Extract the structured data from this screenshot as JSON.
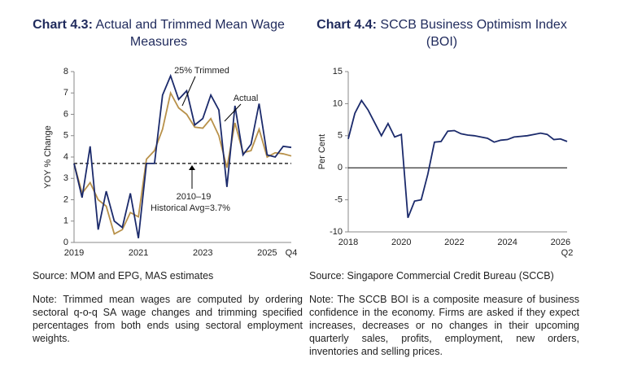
{
  "chart_data": [
    {
      "type": "line",
      "label": "Chart 4.3:",
      "title": "Actual and Trimmed Mean Wage Measures",
      "y_label": "YOY % Change",
      "categories": [
        "2019",
        null,
        null,
        null,
        null,
        null,
        null,
        null,
        "2021",
        null,
        null,
        null,
        null,
        null,
        null,
        null,
        "2023",
        null,
        null,
        null,
        null,
        null,
        null,
        null,
        "2025",
        null,
        null,
        "Q4"
      ],
      "series": [
        {
          "name": "25% Trimmed",
          "color": "#b8914a",
          "values": [
            3.7,
            2.3,
            2.8,
            2.0,
            1.7,
            0.4,
            0.6,
            1.4,
            1.2,
            3.9,
            4.3,
            5.3,
            7.0,
            6.3,
            6.0,
            5.4,
            5.35,
            5.8,
            5.0,
            3.5,
            5.6,
            4.2,
            4.3,
            5.3,
            4.0,
            4.2,
            4.15,
            4.05
          ]
        },
        {
          "name": "Actual",
          "color": "#1b2a6b",
          "values": [
            3.7,
            2.1,
            4.5,
            0.6,
            2.4,
            1.0,
            0.7,
            2.3,
            0.2,
            3.7,
            3.7,
            6.9,
            7.8,
            6.7,
            7.1,
            5.5,
            5.8,
            6.9,
            6.2,
            2.6,
            6.4,
            4.1,
            4.6,
            6.5,
            4.1,
            4.0,
            4.5,
            4.45
          ]
        }
      ],
      "reference_line": 3.7,
      "annotations": [
        "2010–19",
        "Historical Avg=3.7%"
      ],
      "ylim": [
        0,
        8
      ],
      "yticks": [
        0,
        1,
        2,
        3,
        4,
        5,
        6,
        7,
        8
      ],
      "source": "Source: MOM and EPG, MAS estimates",
      "note": "Note: Trimmed mean wages are computed by ordering sectoral q-o-q SA wage changes and trimming specified percentages from both ends using sectoral employment weights."
    },
    {
      "type": "line",
      "label": "Chart 4.4:",
      "title": "SCCB Business Optimism Index (BOI)",
      "y_label": "Per Cent",
      "categories": [
        "2018",
        null,
        null,
        null,
        null,
        null,
        null,
        null,
        "2020",
        null,
        null,
        null,
        null,
        null,
        null,
        null,
        "2022",
        null,
        null,
        null,
        null,
        null,
        null,
        null,
        "2024",
        null,
        null,
        null,
        null,
        null,
        null,
        null,
        "2026",
        "Q2"
      ],
      "series": [
        {
          "name": "SCCB BOI",
          "color": "#1b2a6b",
          "values": [
            4.5,
            8.5,
            10.5,
            9.0,
            7.0,
            5.0,
            6.9,
            4.8,
            5.2,
            -7.8,
            -5.2,
            -5.0,
            -1.0,
            4.0,
            4.1,
            5.7,
            5.8,
            5.3,
            5.1,
            5.0,
            4.8,
            4.6,
            4.0,
            4.3,
            4.4,
            4.8,
            4.9,
            5.0,
            5.2,
            5.4,
            5.2,
            4.4,
            4.5,
            4.1
          ]
        }
      ],
      "ylim": [
        -10,
        15
      ],
      "yticks": [
        -10,
        -5,
        0,
        5,
        10,
        15
      ],
      "source": "Source: Singapore Commercial Credit Bureau (SCCB)",
      "note": "Note: The SCCB BOI is a composite measure of business confidence in the economy. Firms are asked if they expect increases, decreases or no changes in their upcoming quarterly sales, profits, employment, new orders, inventories and selling prices."
    }
  ]
}
